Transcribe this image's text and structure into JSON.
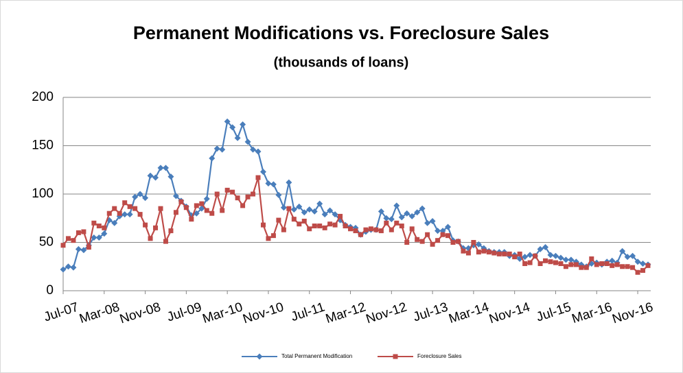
{
  "chart_data": {
    "type": "line",
    "title": "Permanent Modifications vs. Foreclosure Sales",
    "subtitle": "(thousands of loans)",
    "categories": [
      "Jul-07",
      null,
      null,
      null,
      null,
      null,
      null,
      null,
      "Mar-08",
      null,
      null,
      null,
      null,
      null,
      null,
      null,
      "Nov-08",
      null,
      null,
      null,
      null,
      null,
      null,
      null,
      "Jul-09",
      null,
      null,
      null,
      null,
      null,
      null,
      null,
      "Mar-10",
      null,
      null,
      null,
      null,
      null,
      null,
      null,
      "Nov-10",
      null,
      null,
      null,
      null,
      null,
      null,
      null,
      "Jul-11",
      null,
      null,
      null,
      null,
      null,
      null,
      null,
      "Mar-12",
      null,
      null,
      null,
      null,
      null,
      null,
      null,
      "Nov-12",
      null,
      null,
      null,
      null,
      null,
      null,
      null,
      "Jul-13",
      null,
      null,
      null,
      null,
      null,
      null,
      null,
      "Mar-14",
      null,
      null,
      null,
      null,
      null,
      null,
      null,
      "Nov-14",
      null,
      null,
      null,
      null,
      null,
      null,
      null,
      "Jul-15",
      null,
      null,
      null,
      null,
      null,
      null,
      null,
      "Mar-16",
      null,
      null,
      null,
      null,
      null,
      null,
      null,
      "Nov-16",
      null,
      null
    ],
    "series": [
      {
        "name": "Total Permanent Modification",
        "color": "#4a7ebb",
        "marker": "diamond",
        "values": [
          22,
          25,
          24,
          43,
          42,
          47,
          55,
          55,
          59,
          73,
          70,
          77,
          79,
          79,
          97,
          100,
          96,
          119,
          117,
          127,
          127,
          118,
          98,
          93,
          87,
          78,
          80,
          85,
          95,
          137,
          147,
          146,
          175,
          169,
          158,
          172,
          154,
          146,
          144,
          123,
          111,
          110,
          99,
          86,
          112,
          84,
          87,
          81,
          84,
          82,
          90,
          79,
          83,
          79,
          73,
          68,
          66,
          65,
          58,
          61,
          63,
          63,
          82,
          75,
          74,
          88,
          76,
          80,
          77,
          81,
          85,
          70,
          72,
          62,
          62,
          66,
          52,
          51,
          44,
          44,
          47,
          48,
          44,
          41,
          40,
          40,
          40,
          36,
          37,
          33,
          35,
          37,
          36,
          43,
          45,
          37,
          36,
          34,
          32,
          32,
          30,
          27,
          25,
          28,
          29,
          27,
          30,
          31,
          29,
          41,
          35,
          36,
          30,
          28,
          27
        ]
      },
      {
        "name": "Foreclosure Sales",
        "color": "#be4b48",
        "marker": "square",
        "values": [
          47,
          54,
          52,
          60,
          61,
          45,
          70,
          67,
          65,
          80,
          85,
          80,
          91,
          87,
          85,
          79,
          68,
          54,
          65,
          85,
          51,
          62,
          81,
          92,
          86,
          74,
          88,
          90,
          83,
          80,
          100,
          83,
          104,
          102,
          96,
          88,
          97,
          100,
          117,
          68,
          54,
          57,
          73,
          63,
          85,
          74,
          69,
          72,
          64,
          67,
          67,
          65,
          69,
          68,
          77,
          67,
          64,
          62,
          58,
          63,
          64,
          63,
          62,
          70,
          63,
          70,
          67,
          50,
          64,
          53,
          51,
          58,
          48,
          52,
          58,
          57,
          50,
          51,
          41,
          39,
          50,
          40,
          41,
          40,
          39,
          38,
          38,
          38,
          35,
          38,
          28,
          29,
          36,
          28,
          31,
          30,
          29,
          28,
          25,
          27,
          27,
          24,
          24,
          33,
          27,
          28,
          28,
          26,
          27,
          25,
          25,
          24,
          19,
          21,
          26
        ]
      }
    ],
    "ylim": [
      0,
      200
    ],
    "yticks": [
      0,
      50,
      100,
      150,
      200
    ],
    "grid": true,
    "legend": "bottom"
  }
}
